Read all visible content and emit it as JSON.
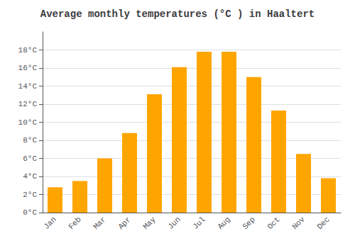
{
  "chart_data": {
    "type": "bar",
    "title": "Average monthly temperatures (°C ) in Haaltert",
    "categories": [
      "Jan",
      "Feb",
      "Mar",
      "Apr",
      "May",
      "Jun",
      "Jul",
      "Aug",
      "Sep",
      "Oct",
      "Nov",
      "Dec"
    ],
    "values": [
      2.8,
      3.5,
      6.0,
      8.8,
      13.1,
      16.1,
      17.8,
      17.8,
      15.0,
      11.3,
      6.5,
      3.8
    ],
    "color": "#FFA500",
    "ylim": [
      0,
      20
    ],
    "yticks": [
      {
        "value": 0,
        "label": "0°C"
      },
      {
        "value": 2,
        "label": "2°C"
      },
      {
        "value": 4,
        "label": "4°C"
      },
      {
        "value": 6,
        "label": "6°C"
      },
      {
        "value": 8,
        "label": "8°C"
      },
      {
        "value": 10,
        "label": "10°C"
      },
      {
        "value": 12,
        "label": "12°C"
      },
      {
        "value": 14,
        "label": "14°C"
      },
      {
        "value": 16,
        "label": "16°C"
      },
      {
        "value": 18,
        "label": "18°C"
      }
    ],
    "grid": true
  }
}
